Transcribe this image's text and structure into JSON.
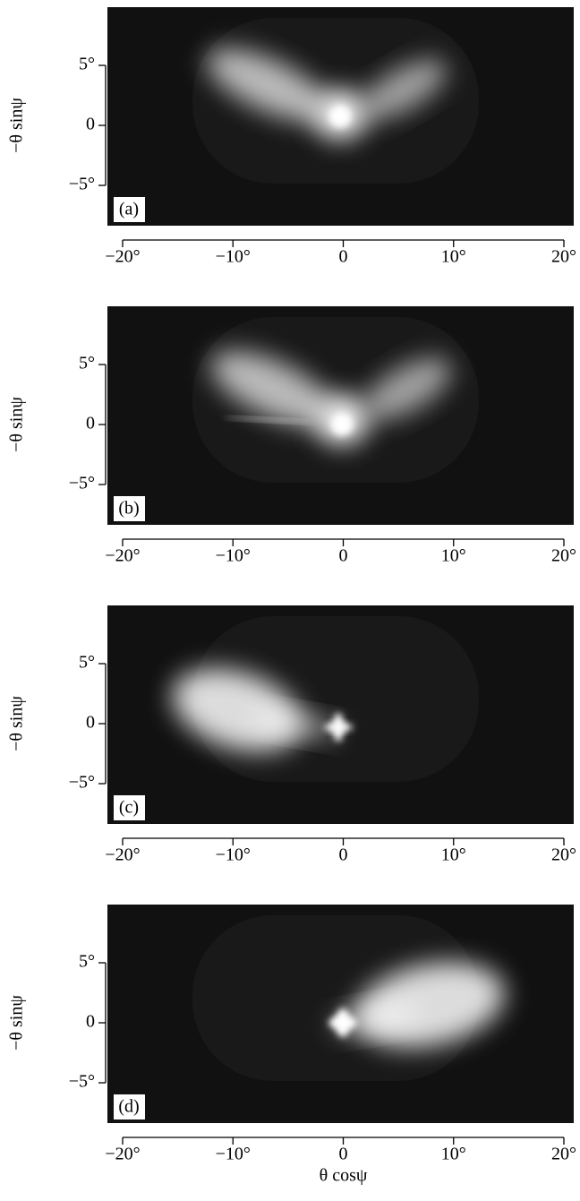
{
  "chart_data": [
    {
      "type": "image",
      "panel_label": "(a)",
      "ylabel": "−θ sinψ",
      "xlim": [
        -20,
        20
      ],
      "ylim": [
        -5,
        5
      ],
      "xticks": [
        {
          "value": -20,
          "label": "−20°"
        },
        {
          "value": -10,
          "label": "−10°"
        },
        0,
        {
          "value": 10,
          "label": "10°"
        },
        {
          "value": 20,
          "label": "20°"
        }
      ],
      "yticks": [
        {
          "value": 5,
          "label": "5°"
        },
        0,
        {
          "value": -5,
          "label": "−5°"
        }
      ]
    },
    {
      "type": "image",
      "panel_label": "(b)",
      "ylabel": "−θ sinψ",
      "xlim": [
        -20,
        20
      ],
      "ylim": [
        -5,
        5
      ],
      "xticks": [
        {
          "value": -20,
          "label": "−20°"
        },
        {
          "value": -10,
          "label": "−10°"
        },
        0,
        {
          "value": 10,
          "label": "10°"
        },
        {
          "value": 20,
          "label": "20°"
        }
      ],
      "yticks": [
        {
          "value": 5,
          "label": "5°"
        },
        0,
        {
          "value": -5,
          "label": "−5°"
        }
      ]
    },
    {
      "type": "image",
      "panel_label": "(c)",
      "ylabel": "−θ sinψ",
      "xlim": [
        -20,
        20
      ],
      "ylim": [
        -5,
        5
      ],
      "xticks": [
        {
          "value": -20,
          "label": "−20°"
        },
        {
          "value": -10,
          "label": "−10°"
        },
        0,
        {
          "value": 10,
          "label": "10°"
        },
        {
          "value": 20,
          "label": "20°"
        }
      ],
      "yticks": [
        {
          "value": 5,
          "label": "5°"
        },
        0,
        {
          "value": -5,
          "label": "−5°"
        }
      ]
    },
    {
      "type": "image",
      "panel_label": "(d)",
      "ylabel": "−θ sinψ",
      "xlabel": "θ cosψ",
      "xlim": [
        -20,
        20
      ],
      "ylim": [
        -5,
        5
      ],
      "xticks": [
        {
          "value": -20,
          "label": "−20°"
        },
        {
          "value": -10,
          "label": "−10°"
        },
        0,
        {
          "value": 10,
          "label": "10°"
        },
        {
          "value": 20,
          "label": "20°"
        }
      ],
      "yticks": [
        {
          "value": 5,
          "label": "5°"
        },
        0,
        {
          "value": -5,
          "label": "−5°"
        }
      ]
    }
  ]
}
